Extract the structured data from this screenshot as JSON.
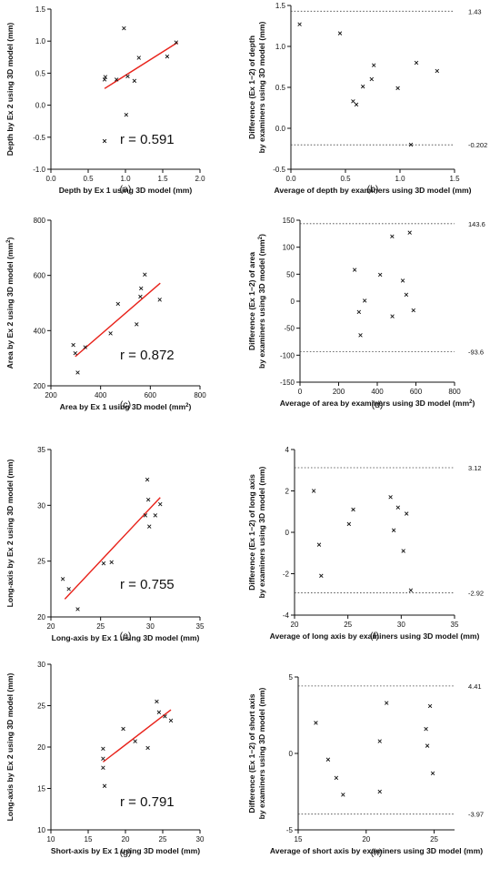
{
  "chart_data": [
    {
      "type": "scatter",
      "panel_label": "(a)",
      "xlabel": "Depth by Ex 1 using 3D model (mm)",
      "ylabel": "Depth by Ex 2 using 3D model (mm)",
      "xlim": [
        0,
        2.0
      ],
      "ylim": [
        -1.0,
        1.5
      ],
      "xticks": [
        "0.0",
        "0.5",
        "1.0",
        "1.5",
        "2.0"
      ],
      "yticks": [
        "-1.0",
        "-0.5",
        "0.0",
        "0.5",
        "1.0",
        "1.5"
      ],
      "points": [
        [
          0.72,
          -0.56
        ],
        [
          0.72,
          0.4
        ],
        [
          0.73,
          0.44
        ],
        [
          0.88,
          0.4
        ],
        [
          0.98,
          1.2
        ],
        [
          1.01,
          -0.15
        ],
        [
          1.03,
          0.45
        ],
        [
          1.12,
          0.38
        ],
        [
          1.18,
          0.74
        ],
        [
          1.56,
          0.76
        ],
        [
          1.68,
          0.98
        ]
      ],
      "fit_line": [
        [
          0.72,
          0.26
        ],
        [
          1.7,
          0.98
        ]
      ],
      "annotation": "r = 0.591",
      "grid": false
    },
    {
      "type": "scatter",
      "panel_label": "(b)",
      "xlabel": "Average of depth by examiners using 3D model (mm)",
      "ylabel": [
        "Difference (Ex 1−2) of depth",
        "by examiners using 3D model (mm)"
      ],
      "xlim": [
        0,
        1.5
      ],
      "ylim": [
        -0.5,
        1.5
      ],
      "xticks": [
        "0.0",
        "0.5",
        "1.0",
        "1.5"
      ],
      "yticks": [
        "-0.5",
        "0.0",
        "0.5",
        "1.0",
        "1.5"
      ],
      "points": [
        [
          0.08,
          1.27
        ],
        [
          0.45,
          1.16
        ],
        [
          0.57,
          0.33
        ],
        [
          0.6,
          0.29
        ],
        [
          0.66,
          0.51
        ],
        [
          0.74,
          0.6
        ],
        [
          0.76,
          0.77
        ],
        [
          0.98,
          0.49
        ],
        [
          1.1,
          -0.2
        ],
        [
          1.15,
          0.8
        ],
        [
          1.34,
          0.7
        ]
      ],
      "limits_of_agreement": [
        {
          "value": 1.43,
          "label": "1.43"
        },
        {
          "value": -0.202,
          "label": "-0.202"
        }
      ],
      "grid": false
    },
    {
      "type": "scatter",
      "panel_label": "(c)",
      "xlabel": "Area by Ex 1 using 3D model (mm²)",
      "ylabel": "Area by Ex 2 using 3D model (mm²)",
      "xlim": [
        200,
        800
      ],
      "ylim": [
        200,
        800
      ],
      "xticks": [
        "200",
        "400",
        "600",
        "800"
      ],
      "yticks": [
        "200",
        "400",
        "600",
        "800"
      ],
      "points": [
        [
          290,
          348
        ],
        [
          298,
          318
        ],
        [
          308,
          248
        ],
        [
          338,
          340
        ],
        [
          440,
          390
        ],
        [
          470,
          497
        ],
        [
          545,
          423
        ],
        [
          560,
          523
        ],
        [
          563,
          553
        ],
        [
          578,
          603
        ],
        [
          638,
          512
        ]
      ],
      "fit_line": [
        [
          298,
          306
        ],
        [
          640,
          572
        ]
      ],
      "annotation": "r = 0.872",
      "grid": false
    },
    {
      "type": "scatter",
      "panel_label": "(d)",
      "xlabel": "Average of area by examiners using 3D model (mm²)",
      "ylabel": [
        "Difference (Ex 1−2) of area",
        "by examiners using 3D model (mm²)"
      ],
      "xlim": [
        0,
        800
      ],
      "ylim": [
        -150,
        150
      ],
      "xticks": [
        "0",
        "200",
        "400",
        "600",
        "800"
      ],
      "yticks": [
        "-150",
        "-100",
        "-50",
        "0",
        "50",
        "100",
        "150"
      ],
      "points": [
        [
          283,
          58
        ],
        [
          305,
          -20
        ],
        [
          313,
          -63
        ],
        [
          335,
          1
        ],
        [
          415,
          49
        ],
        [
          477,
          120
        ],
        [
          478,
          -28
        ],
        [
          532,
          38
        ],
        [
          550,
          12
        ],
        [
          568,
          127
        ],
        [
          587,
          -17
        ]
      ],
      "limits_of_agreement": [
        {
          "value": 143.6,
          "label": "143.6"
        },
        {
          "value": -93.6,
          "label": "-93.6"
        }
      ],
      "grid": false
    },
    {
      "type": "scatter",
      "panel_label": "(e)",
      "xlabel": "Long-axis by Ex 1 using 3D model (mm)",
      "ylabel": "Long-axis by Ex 2 using 3D model (mm)",
      "xlim": [
        20,
        35
      ],
      "ylim": [
        20,
        35
      ],
      "xticks": [
        "20",
        "25",
        "30",
        "35"
      ],
      "yticks": [
        "20",
        "25",
        "30",
        "35"
      ],
      "points": [
        [
          21.2,
          23.4
        ],
        [
          21.8,
          22.5
        ],
        [
          22.7,
          20.7
        ],
        [
          25.3,
          24.8
        ],
        [
          26.1,
          24.9
        ],
        [
          29.5,
          29.1
        ],
        [
          29.7,
          32.3
        ],
        [
          29.8,
          30.5
        ],
        [
          29.9,
          28.1
        ],
        [
          30.5,
          29.1
        ],
        [
          31.0,
          30.1
        ]
      ],
      "fit_line": [
        [
          21.4,
          21.6
        ],
        [
          31.0,
          30.7
        ]
      ],
      "annotation": "r = 0.755",
      "grid": false
    },
    {
      "type": "scatter",
      "panel_label": "(f)",
      "xlabel": "Average of long axis by examiners using 3D model (mm)",
      "ylabel": [
        "Difference (Ex 1−2) of long axis",
        "by examiners using 3D model (mm)"
      ],
      "xlim": [
        20,
        35
      ],
      "ylim": [
        -4,
        4
      ],
      "xticks": [
        "20",
        "25",
        "30",
        "35"
      ],
      "yticks": [
        "-4",
        "-2",
        "0",
        "2",
        "4"
      ],
      "points": [
        [
          21.8,
          2.0
        ],
        [
          22.3,
          -0.6
        ],
        [
          22.5,
          -2.1
        ],
        [
          25.1,
          0.4
        ],
        [
          25.5,
          1.1
        ],
        [
          29.0,
          1.7
        ],
        [
          29.3,
          0.1
        ],
        [
          29.7,
          1.2
        ],
        [
          30.2,
          -0.9
        ],
        [
          30.5,
          0.9
        ],
        [
          30.9,
          -2.8
        ]
      ],
      "limits_of_agreement": [
        {
          "value": 3.12,
          "label": "3.12"
        },
        {
          "value": -2.92,
          "label": "-2.92"
        }
      ],
      "grid": false
    },
    {
      "type": "scatter",
      "panel_label": "(g)",
      "xlabel": "Short-axis by Ex 1 using 3D model (mm)",
      "ylabel": "Long-axis by Ex 2 using 3D model (mm)",
      "xlim": [
        10,
        30
      ],
      "ylim": [
        10,
        30
      ],
      "xticks": [
        "10",
        "15",
        "20",
        "25",
        "30"
      ],
      "yticks": [
        "10",
        "15",
        "20",
        "25",
        "30"
      ],
      "points": [
        [
          17.0,
          19.8
        ],
        [
          17.0,
          18.6
        ],
        [
          17.0,
          17.5
        ],
        [
          17.2,
          15.3
        ],
        [
          19.7,
          22.2
        ],
        [
          21.3,
          20.7
        ],
        [
          23.0,
          19.9
        ],
        [
          24.2,
          25.5
        ],
        [
          24.5,
          24.2
        ],
        [
          25.3,
          23.7
        ],
        [
          26.1,
          23.2
        ]
      ],
      "fit_line": [
        [
          17.0,
          18.2
        ],
        [
          26.1,
          24.5
        ]
      ],
      "annotation": "r = 0.791",
      "grid": false
    },
    {
      "type": "scatter",
      "panel_label": "(h)",
      "xlabel": "Average of short axis by examiners using 3D model (mm)",
      "ylabel": [
        "Difference (Ex 1−2) of short axis",
        "by examiners using 3D model (mm)"
      ],
      "xlim": [
        15,
        26.5
      ],
      "ylim": [
        -5,
        5
      ],
      "xticks": [
        "15",
        "20",
        "25"
      ],
      "yticks": [
        "-5",
        "0",
        "5"
      ],
      "points": [
        [
          16.3,
          2.0
        ],
        [
          17.2,
          -0.4
        ],
        [
          17.8,
          -1.6
        ],
        [
          18.3,
          -2.7
        ],
        [
          21.0,
          0.8
        ],
        [
          21.0,
          -2.5
        ],
        [
          21.5,
          3.3
        ],
        [
          24.4,
          1.6
        ],
        [
          24.5,
          0.5
        ],
        [
          24.7,
          3.1
        ],
        [
          24.9,
          -1.3
        ]
      ],
      "limits_of_agreement": [
        {
          "value": 4.41,
          "label": "4.41"
        },
        {
          "value": -3.97,
          "label": "-3.97"
        }
      ],
      "grid": false
    }
  ]
}
